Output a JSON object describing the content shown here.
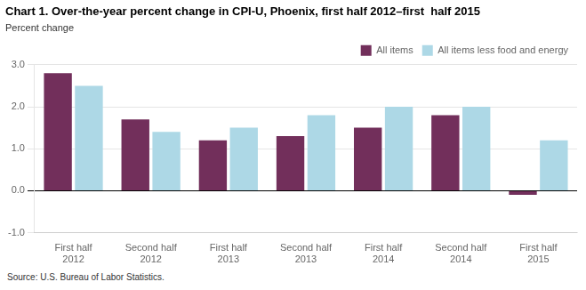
{
  "chart_data": {
    "type": "bar",
    "title": "Chart 1. Over-the-year percent change in CPI-U, Phoenix, first half 2012–first  half 2015",
    "ylabel": "Percent change",
    "annotations": [
      "Source: U.S. Bureau of Labor Statistics."
    ],
    "categories": [
      "First half 2012",
      "Second half 2012",
      "First half 2013",
      "Second half 2013",
      "First half 2014",
      "Second half 2014",
      "First half 2015"
    ],
    "series": [
      {
        "name": "All items",
        "color": "#722F5B",
        "values": [
          2.8,
          1.7,
          1.2,
          1.3,
          1.5,
          1.8,
          -0.1
        ]
      },
      {
        "name": "All items less food and energy",
        "color": "#ADD8E6",
        "values": [
          2.5,
          1.4,
          1.5,
          1.8,
          2.0,
          2.0,
          1.2
        ]
      }
    ],
    "ylim": [
      -1.0,
      3.0
    ],
    "yticks": [
      {
        "value": -1.0,
        "label": "-1.0"
      },
      {
        "value": 0.0,
        "label": "0.0"
      },
      {
        "value": 1.0,
        "label": "1.0"
      },
      {
        "value": 2.0,
        "label": "2.0"
      },
      {
        "value": 3.0,
        "label": "3.0"
      }
    ],
    "grid": true,
    "legend": "upper right"
  }
}
